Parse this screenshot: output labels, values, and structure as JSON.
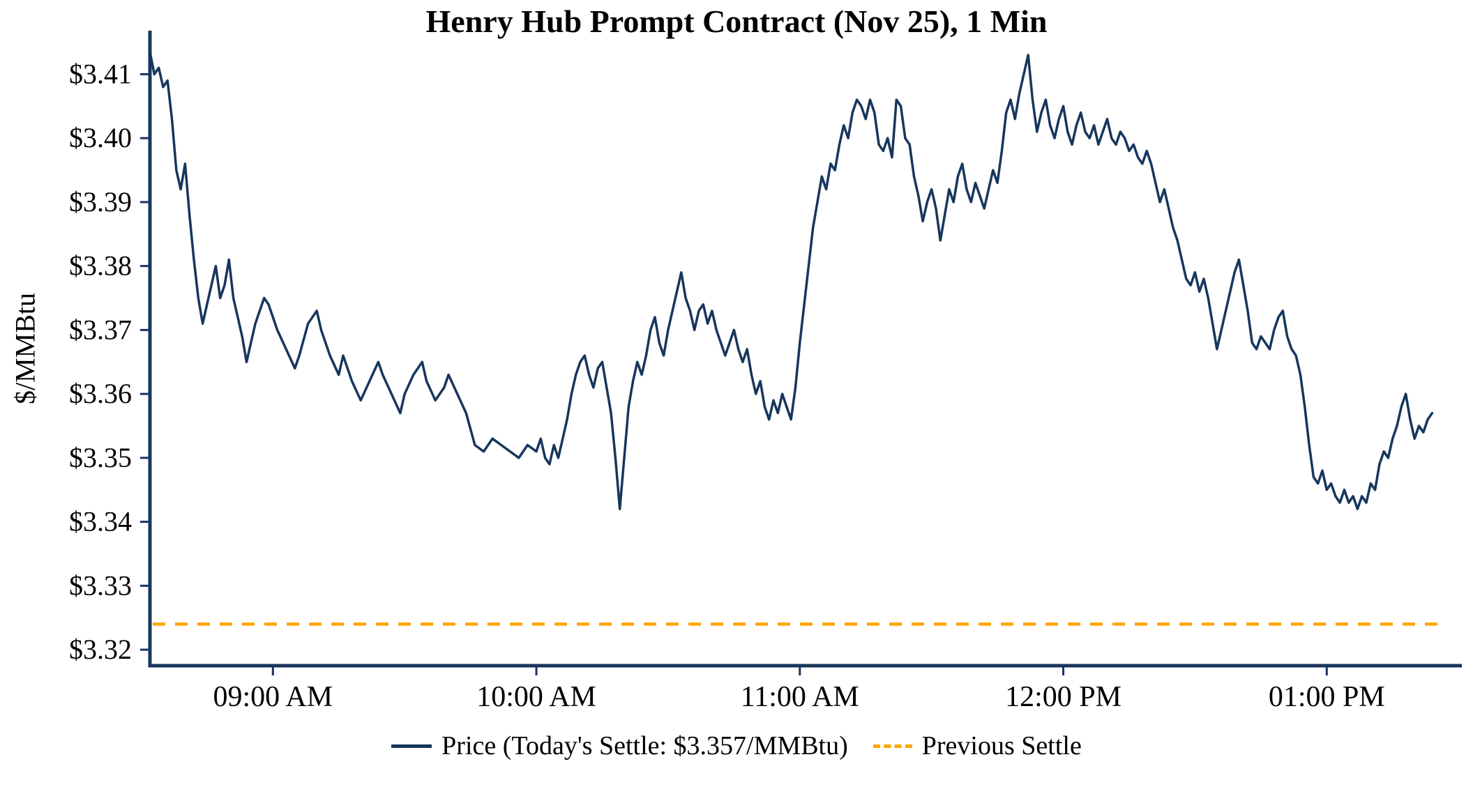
{
  "title": "Henry Hub Prompt Contract (Nov 25), 1 Min",
  "y_axis_label": "$/MMBtu",
  "legend": {
    "price_label": "Price (Today's Settle: $3.357/MMBtu)",
    "previous_settle_label": "Previous Settle"
  },
  "colors": {
    "price_line": "#17365d",
    "previous_settle": "#FFA500",
    "axis": "#17365d",
    "text": "#000000"
  },
  "chart_data": {
    "type": "line",
    "title": "Henry Hub Prompt Contract (Nov 25), 1 Min",
    "xlabel": "",
    "ylabel": "$/MMBtu",
    "ylim": [
      3.3175,
      3.4155
    ],
    "x_range_minutes": [
      512,
      806
    ],
    "grid": false,
    "legend_position": "bottom",
    "todays_settle_value": 3.357,
    "previous_settle_value": 3.324,
    "x_ticks": [
      {
        "minute": 540,
        "label": "09:00 AM"
      },
      {
        "minute": 600,
        "label": "10:00 AM"
      },
      {
        "minute": 660,
        "label": "11:00 AM"
      },
      {
        "minute": 720,
        "label": "12:00 PM"
      },
      {
        "minute": 780,
        "label": "01:00 PM"
      }
    ],
    "y_ticks": [
      {
        "value": 3.32,
        "label": "$3.32"
      },
      {
        "value": 3.33,
        "label": "$3.33"
      },
      {
        "value": 3.34,
        "label": "$3.34"
      },
      {
        "value": 3.35,
        "label": "$3.35"
      },
      {
        "value": 3.36,
        "label": "$3.36"
      },
      {
        "value": 3.37,
        "label": "$3.37"
      },
      {
        "value": 3.38,
        "label": "$3.38"
      },
      {
        "value": 3.39,
        "label": "$3.39"
      },
      {
        "value": 3.4,
        "label": "$3.40"
      },
      {
        "value": 3.41,
        "label": "$3.41"
      }
    ],
    "series": [
      {
        "name": "Price",
        "type": "line",
        "points": [
          [
            512,
            3.4135
          ],
          [
            513,
            3.41
          ],
          [
            514,
            3.411
          ],
          [
            515,
            3.408
          ],
          [
            516,
            3.409
          ],
          [
            517,
            3.403
          ],
          [
            518,
            3.395
          ],
          [
            519,
            3.392
          ],
          [
            520,
            3.396
          ],
          [
            521,
            3.388
          ],
          [
            522,
            3.381
          ],
          [
            523,
            3.375
          ],
          [
            524,
            3.371
          ],
          [
            525,
            3.374
          ],
          [
            526,
            3.377
          ],
          [
            527,
            3.38
          ],
          [
            528,
            3.375
          ],
          [
            529,
            3.377
          ],
          [
            530,
            3.381
          ],
          [
            531,
            3.375
          ],
          [
            532,
            3.372
          ],
          [
            533,
            3.369
          ],
          [
            534,
            3.365
          ],
          [
            535,
            3.368
          ],
          [
            536,
            3.371
          ],
          [
            537,
            3.373
          ],
          [
            538,
            3.375
          ],
          [
            539,
            3.374
          ],
          [
            540,
            3.372
          ],
          [
            541,
            3.37
          ],
          [
            543,
            3.367
          ],
          [
            545,
            3.364
          ],
          [
            546,
            3.366
          ],
          [
            548,
            3.371
          ],
          [
            550,
            3.373
          ],
          [
            551,
            3.37
          ],
          [
            553,
            3.366
          ],
          [
            555,
            3.363
          ],
          [
            556,
            3.366
          ],
          [
            558,
            3.362
          ],
          [
            560,
            3.359
          ],
          [
            562,
            3.362
          ],
          [
            564,
            3.365
          ],
          [
            565,
            3.363
          ],
          [
            567,
            3.36
          ],
          [
            569,
            3.357
          ],
          [
            570,
            3.36
          ],
          [
            572,
            3.363
          ],
          [
            574,
            3.365
          ],
          [
            575,
            3.362
          ],
          [
            577,
            3.359
          ],
          [
            579,
            3.361
          ],
          [
            580,
            3.363
          ],
          [
            582,
            3.36
          ],
          [
            584,
            3.357
          ],
          [
            586,
            3.352
          ],
          [
            588,
            3.351
          ],
          [
            590,
            3.353
          ],
          [
            592,
            3.352
          ],
          [
            594,
            3.351
          ],
          [
            596,
            3.35
          ],
          [
            598,
            3.352
          ],
          [
            600,
            3.351
          ],
          [
            601,
            3.353
          ],
          [
            602,
            3.35
          ],
          [
            603,
            3.349
          ],
          [
            604,
            3.352
          ],
          [
            605,
            3.35
          ],
          [
            606,
            3.353
          ],
          [
            607,
            3.356
          ],
          [
            608,
            3.36
          ],
          [
            609,
            3.363
          ],
          [
            610,
            3.365
          ],
          [
            611,
            3.366
          ],
          [
            612,
            3.363
          ],
          [
            613,
            3.361
          ],
          [
            614,
            3.364
          ],
          [
            615,
            3.365
          ],
          [
            616,
            3.361
          ],
          [
            617,
            3.357
          ],
          [
            618,
            3.35
          ],
          [
            619,
            3.342
          ],
          [
            620,
            3.35
          ],
          [
            621,
            3.358
          ],
          [
            622,
            3.362
          ],
          [
            623,
            3.365
          ],
          [
            624,
            3.363
          ],
          [
            625,
            3.366
          ],
          [
            626,
            3.37
          ],
          [
            627,
            3.372
          ],
          [
            628,
            3.368
          ],
          [
            629,
            3.366
          ],
          [
            630,
            3.37
          ],
          [
            631,
            3.373
          ],
          [
            632,
            3.376
          ],
          [
            633,
            3.379
          ],
          [
            634,
            3.375
          ],
          [
            635,
            3.373
          ],
          [
            636,
            3.37
          ],
          [
            637,
            3.373
          ],
          [
            638,
            3.374
          ],
          [
            639,
            3.371
          ],
          [
            640,
            3.373
          ],
          [
            641,
            3.37
          ],
          [
            642,
            3.368
          ],
          [
            643,
            3.366
          ],
          [
            644,
            3.368
          ],
          [
            645,
            3.37
          ],
          [
            646,
            3.367
          ],
          [
            647,
            3.365
          ],
          [
            648,
            3.367
          ],
          [
            649,
            3.363
          ],
          [
            650,
            3.36
          ],
          [
            651,
            3.362
          ],
          [
            652,
            3.358
          ],
          [
            653,
            3.356
          ],
          [
            654,
            3.359
          ],
          [
            655,
            3.357
          ],
          [
            656,
            3.36
          ],
          [
            657,
            3.358
          ],
          [
            658,
            3.356
          ],
          [
            659,
            3.361
          ],
          [
            660,
            3.368
          ],
          [
            661,
            3.374
          ],
          [
            662,
            3.38
          ],
          [
            663,
            3.386
          ],
          [
            664,
            3.39
          ],
          [
            665,
            3.394
          ],
          [
            666,
            3.392
          ],
          [
            667,
            3.396
          ],
          [
            668,
            3.395
          ],
          [
            669,
            3.399
          ],
          [
            670,
            3.402
          ],
          [
            671,
            3.4
          ],
          [
            672,
            3.404
          ],
          [
            673,
            3.406
          ],
          [
            674,
            3.405
          ],
          [
            675,
            3.403
          ],
          [
            676,
            3.406
          ],
          [
            677,
            3.404
          ],
          [
            678,
            3.399
          ],
          [
            679,
            3.398
          ],
          [
            680,
            3.4
          ],
          [
            681,
            3.397
          ],
          [
            682,
            3.406
          ],
          [
            683,
            3.405
          ],
          [
            684,
            3.4
          ],
          [
            685,
            3.399
          ],
          [
            686,
            3.394
          ],
          [
            687,
            3.391
          ],
          [
            688,
            3.387
          ],
          [
            689,
            3.39
          ],
          [
            690,
            3.392
          ],
          [
            691,
            3.389
          ],
          [
            692,
            3.384
          ],
          [
            693,
            3.388
          ],
          [
            694,
            3.392
          ],
          [
            695,
            3.39
          ],
          [
            696,
            3.394
          ],
          [
            697,
            3.396
          ],
          [
            698,
            3.392
          ],
          [
            699,
            3.39
          ],
          [
            700,
            3.393
          ],
          [
            701,
            3.391
          ],
          [
            702,
            3.389
          ],
          [
            703,
            3.392
          ],
          [
            704,
            3.395
          ],
          [
            705,
            3.393
          ],
          [
            706,
            3.398
          ],
          [
            707,
            3.404
          ],
          [
            708,
            3.406
          ],
          [
            709,
            3.403
          ],
          [
            710,
            3.407
          ],
          [
            711,
            3.41
          ],
          [
            712,
            3.413
          ],
          [
            713,
            3.406
          ],
          [
            714,
            3.401
          ],
          [
            715,
            3.404
          ],
          [
            716,
            3.406
          ],
          [
            717,
            3.402
          ],
          [
            718,
            3.4
          ],
          [
            719,
            3.403
          ],
          [
            720,
            3.405
          ],
          [
            721,
            3.401
          ],
          [
            722,
            3.399
          ],
          [
            723,
            3.402
          ],
          [
            724,
            3.404
          ],
          [
            725,
            3.401
          ],
          [
            726,
            3.4
          ],
          [
            727,
            3.402
          ],
          [
            728,
            3.399
          ],
          [
            729,
            3.401
          ],
          [
            730,
            3.403
          ],
          [
            731,
            3.4
          ],
          [
            732,
            3.399
          ],
          [
            733,
            3.401
          ],
          [
            734,
            3.4
          ],
          [
            735,
            3.398
          ],
          [
            736,
            3.399
          ],
          [
            737,
            3.397
          ],
          [
            738,
            3.396
          ],
          [
            739,
            3.398
          ],
          [
            740,
            3.396
          ],
          [
            741,
            3.393
          ],
          [
            742,
            3.39
          ],
          [
            743,
            3.392
          ],
          [
            744,
            3.389
          ],
          [
            745,
            3.386
          ],
          [
            746,
            3.384
          ],
          [
            747,
            3.381
          ],
          [
            748,
            3.378
          ],
          [
            749,
            3.377
          ],
          [
            750,
            3.379
          ],
          [
            751,
            3.376
          ],
          [
            752,
            3.378
          ],
          [
            753,
            3.375
          ],
          [
            754,
            3.371
          ],
          [
            755,
            3.367
          ],
          [
            756,
            3.37
          ],
          [
            757,
            3.373
          ],
          [
            758,
            3.376
          ],
          [
            759,
            3.379
          ],
          [
            760,
            3.381
          ],
          [
            761,
            3.377
          ],
          [
            762,
            3.373
          ],
          [
            763,
            3.368
          ],
          [
            764,
            3.367
          ],
          [
            765,
            3.369
          ],
          [
            766,
            3.368
          ],
          [
            767,
            3.367
          ],
          [
            768,
            3.37
          ],
          [
            769,
            3.372
          ],
          [
            770,
            3.373
          ],
          [
            771,
            3.369
          ],
          [
            772,
            3.367
          ],
          [
            773,
            3.366
          ],
          [
            774,
            3.363
          ],
          [
            775,
            3.358
          ],
          [
            776,
            3.352
          ],
          [
            777,
            3.347
          ],
          [
            778,
            3.346
          ],
          [
            779,
            3.348
          ],
          [
            780,
            3.345
          ],
          [
            781,
            3.346
          ],
          [
            782,
            3.344
          ],
          [
            783,
            3.343
          ],
          [
            784,
            3.345
          ],
          [
            785,
            3.343
          ],
          [
            786,
            3.344
          ],
          [
            787,
            3.342
          ],
          [
            788,
            3.344
          ],
          [
            789,
            3.343
          ],
          [
            790,
            3.346
          ],
          [
            791,
            3.345
          ],
          [
            792,
            3.349
          ],
          [
            793,
            3.351
          ],
          [
            794,
            3.35
          ],
          [
            795,
            3.353
          ],
          [
            796,
            3.355
          ],
          [
            797,
            3.358
          ],
          [
            798,
            3.36
          ],
          [
            799,
            3.356
          ],
          [
            800,
            3.353
          ],
          [
            801,
            3.355
          ],
          [
            802,
            3.354
          ],
          [
            803,
            3.356
          ],
          [
            804,
            3.357
          ]
        ]
      },
      {
        "name": "Previous Settle",
        "type": "hline",
        "style": "dashed",
        "value": 3.324
      }
    ]
  }
}
